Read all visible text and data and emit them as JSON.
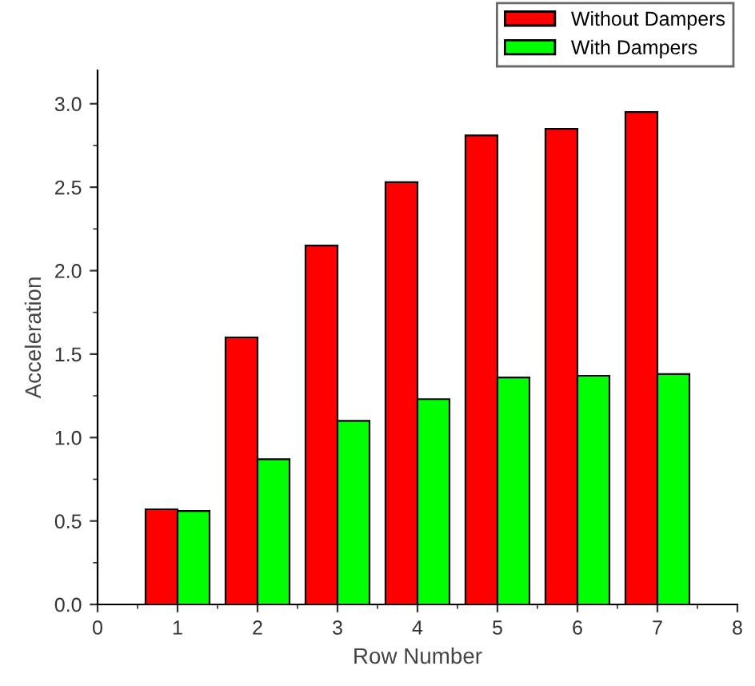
{
  "chart_data": {
    "type": "bar",
    "xlabel": "Row Number",
    "ylabel": "Acceleration",
    "x": [
      1,
      2,
      3,
      4,
      5,
      6,
      7
    ],
    "series": [
      {
        "name": "Without Dampers",
        "color": "#ff0000",
        "values": [
          0.57,
          1.6,
          2.15,
          2.53,
          2.81,
          2.85,
          2.95
        ]
      },
      {
        "name": "With Dampers",
        "color": "#00ff00",
        "values": [
          0.56,
          0.87,
          1.1,
          1.23,
          1.36,
          1.37,
          1.38
        ]
      }
    ],
    "xlim": [
      0,
      8
    ],
    "xticks": [
      0,
      1,
      2,
      3,
      4,
      5,
      6,
      7,
      8
    ],
    "ylim": [
      0,
      3.2
    ],
    "yticks": [
      {
        "value": 0,
        "label": "0.0"
      },
      {
        "value": 0.5,
        "label": "0.5"
      },
      {
        "value": 1,
        "label": "1.0"
      },
      {
        "value": 1.5,
        "label": "1.5"
      },
      {
        "value": 2,
        "label": "2.0"
      },
      {
        "value": 2.5,
        "label": "2.5"
      },
      {
        "value": 3,
        "label": "3.0"
      }
    ],
    "grid": false,
    "legend": "top right"
  }
}
